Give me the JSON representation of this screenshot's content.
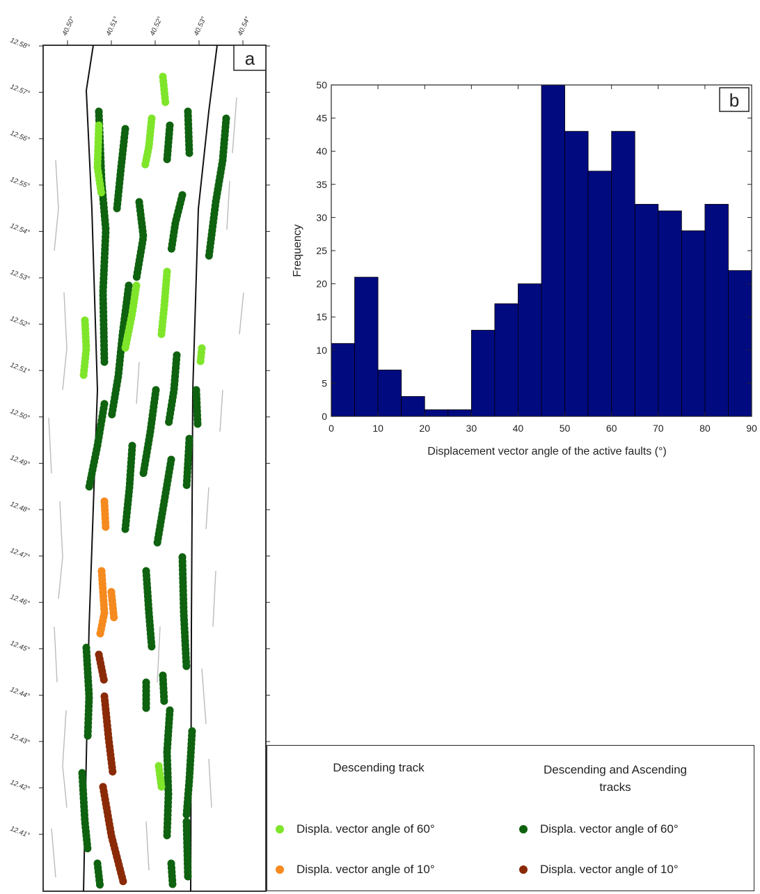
{
  "map": {
    "panel_label": "a",
    "lon_ticks": [
      "40.50°",
      "40.51°",
      "40.52°",
      "40.53°",
      "40.54°"
    ],
    "lat_ticks": [
      "12.58°",
      "12.57°",
      "12.56°",
      "12.55°",
      "12.54°",
      "12.53°",
      "12.52°",
      "12.51°",
      "12.50°",
      "12.49°",
      "12.48°",
      "12.47°",
      "12.46°",
      "12.45°",
      "12.44°",
      "12.43°",
      "12.42°",
      "12.41°"
    ]
  },
  "chart_data": {
    "type": "bar",
    "panel_label": "b",
    "xlabel": "Displacement vector angle of the active faults (°)",
    "ylabel": "Frequency",
    "bin_edges": [
      0,
      5,
      10,
      15,
      20,
      25,
      30,
      35,
      40,
      45,
      50,
      55,
      60,
      65,
      70,
      75,
      80,
      85,
      90
    ],
    "values": [
      11,
      21,
      7,
      3,
      1,
      1,
      13,
      17,
      20,
      50,
      43,
      37,
      43,
      32,
      31,
      28,
      32,
      22
    ],
    "xlim": [
      0,
      90
    ],
    "ylim": [
      0,
      50
    ],
    "xticks": [
      "0",
      "10",
      "20",
      "30",
      "40",
      "50",
      "60",
      "70",
      "80",
      "90"
    ],
    "yticks": [
      "0",
      "5",
      "10",
      "15",
      "20",
      "25",
      "30",
      "35",
      "40",
      "45",
      "50"
    ],
    "bar_color": "#020a80",
    "grid": false
  },
  "legend": {
    "heading_left": "Descending track",
    "heading_right_line1": "Descending and Ascending",
    "heading_right_line2": "tracks",
    "items": [
      {
        "label": "Displa. vector angle of 60°",
        "color": "#7fe52a"
      },
      {
        "label": "Displa. vector angle of 10°",
        "color": "#f58a1e"
      },
      {
        "label": "Displa. vector angle of 60°",
        "color": "#0f620f"
      },
      {
        "label": "Displa. vector angle of 10°",
        "color": "#8a2a06"
      }
    ]
  }
}
